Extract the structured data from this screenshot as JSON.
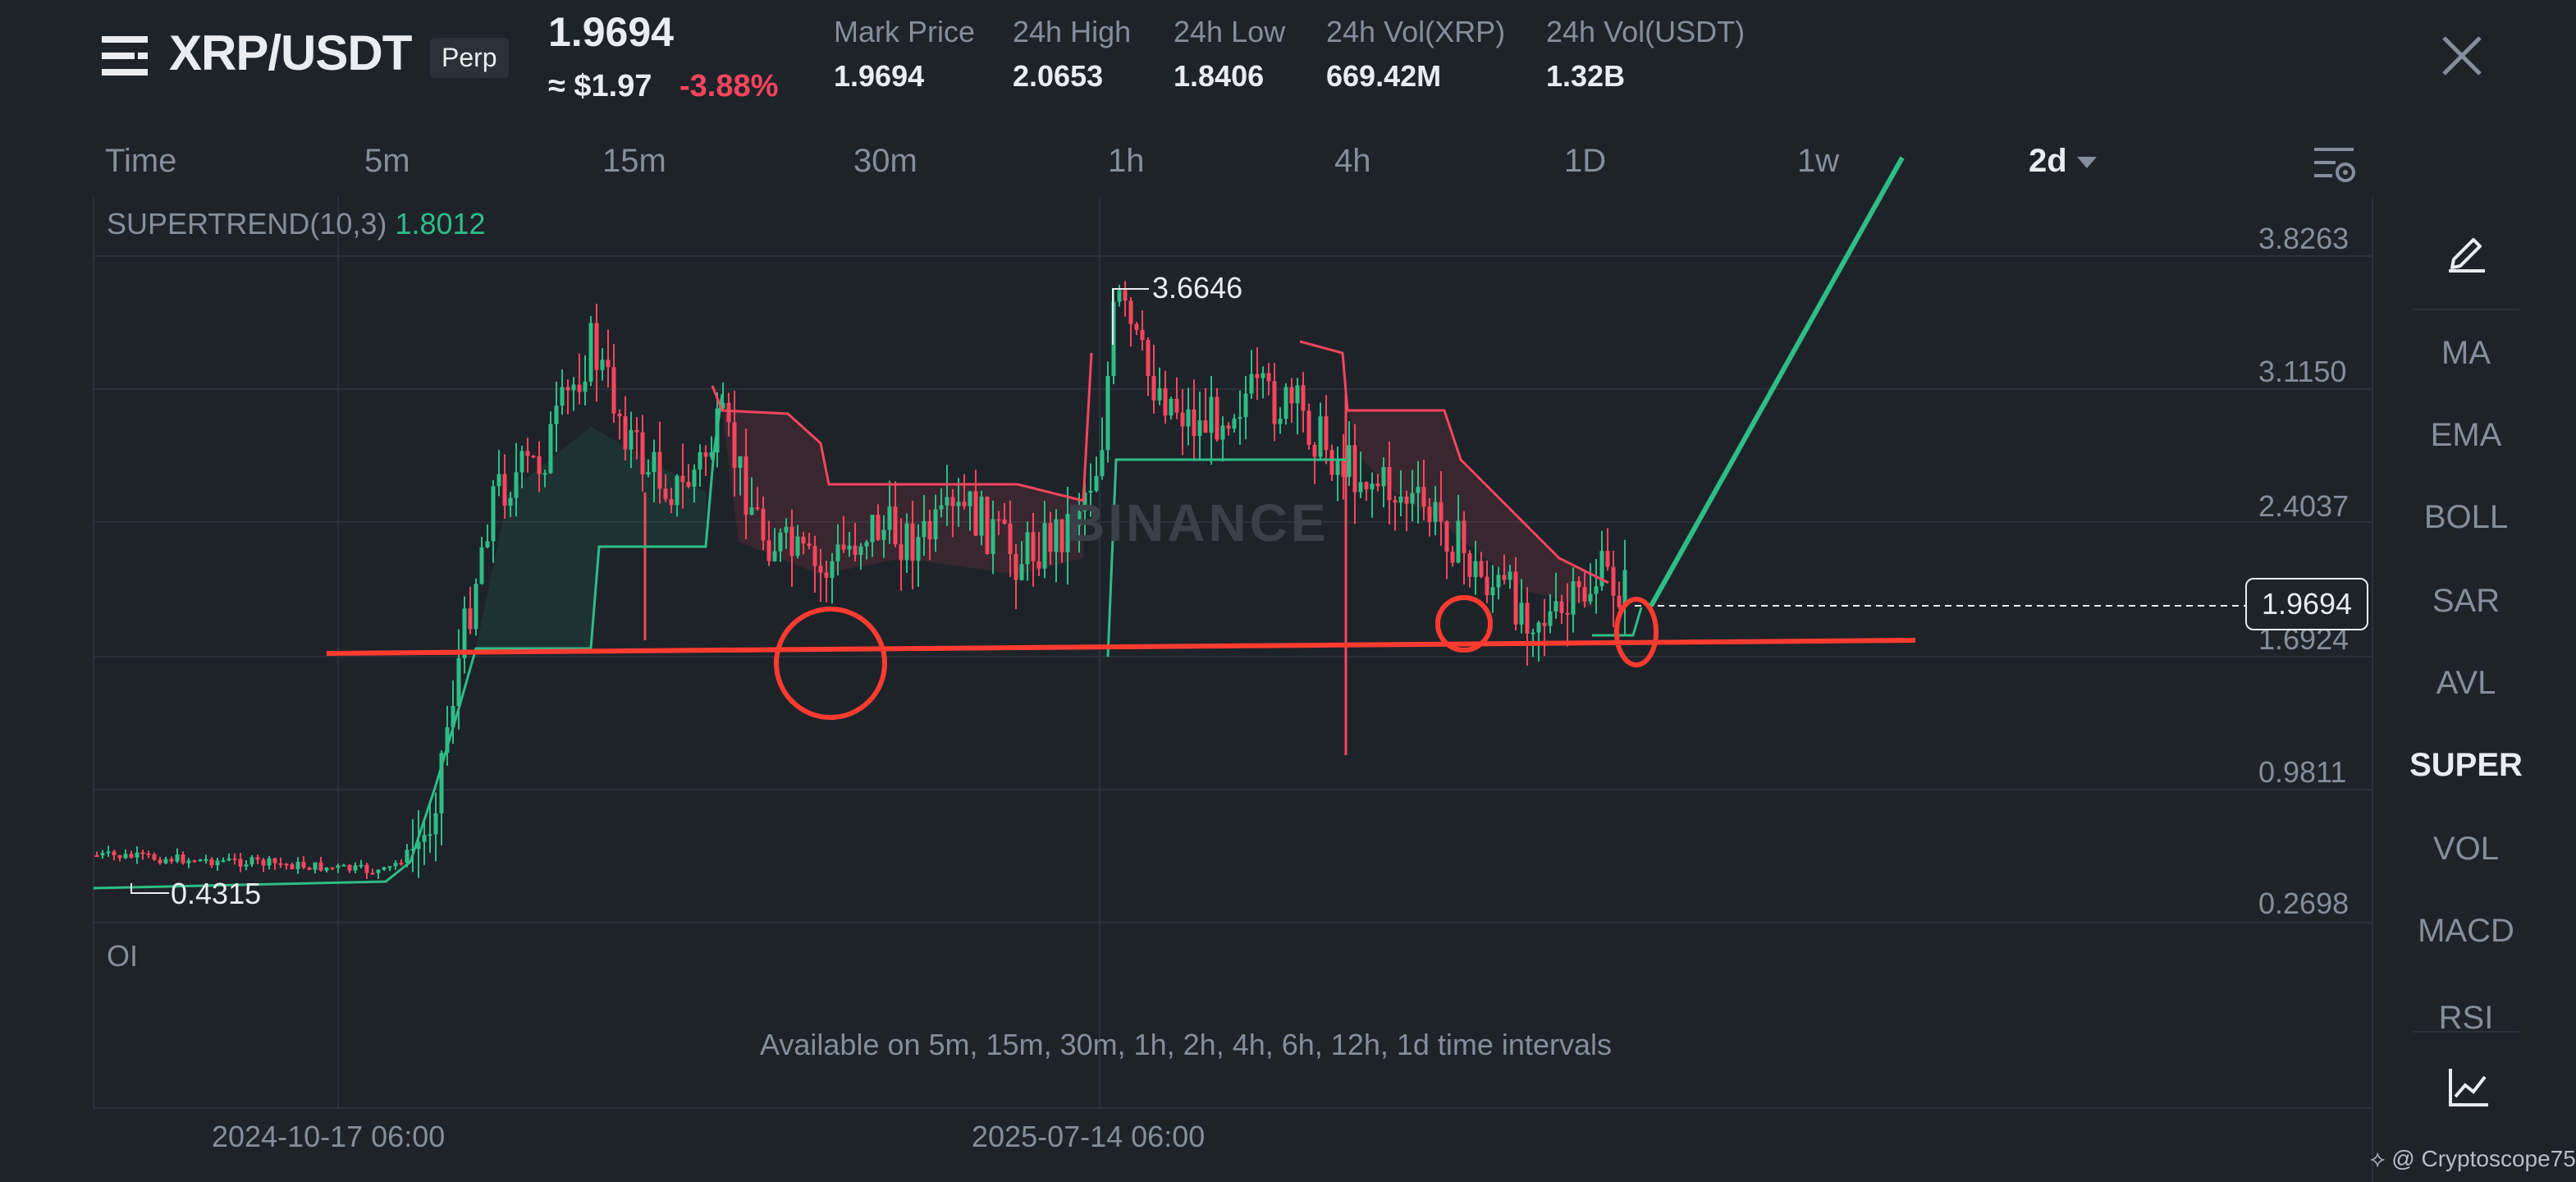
{
  "header": {
    "pair": "XRP/USDT",
    "badge": "Perp",
    "last_price": "1.9694",
    "usd_price": "≈ $1.97",
    "change": "-3.88%",
    "stats": [
      {
        "label": "Mark Price",
        "value": "1.9694"
      },
      {
        "label": "24h High",
        "value": "2.0653"
      },
      {
        "label": "24h Low",
        "value": "1.8406"
      },
      {
        "label": "24h Vol(XRP)",
        "value": "669.42M"
      },
      {
        "label": "24h Vol(USDT)",
        "value": "1.32B"
      }
    ]
  },
  "intervals": {
    "items": [
      "Time",
      "5m",
      "15m",
      "30m",
      "1h",
      "4h",
      "1D",
      "1w"
    ],
    "selected": "2d"
  },
  "chart": {
    "indicator_name": "SUPERTREND(10,3)",
    "indicator_value": "1.8012",
    "price_axis": [
      "3.8263",
      "3.1150",
      "2.4037",
      "1.6924",
      "0.9811",
      "0.2698"
    ],
    "current_price_tag": "1.9694",
    "peak_label": "3.6646",
    "low_label": "0.4315",
    "oi_label": "OI",
    "oi_note": "Available on 5m, 15m, 30m, 1h, 2h, 4h, 6h, 12h, 1d time intervals",
    "dates": [
      "2024-10-17 06:00",
      "2025-07-14 06:00"
    ],
    "watermark": "BINANCE",
    "colors": {
      "up": "#2ebd85",
      "down": "#f6465d",
      "annotation": "#ff3b30",
      "projection": "#2ebd85"
    }
  },
  "toolbar": {
    "items": [
      "MA",
      "EMA",
      "BOLL",
      "SAR",
      "AVL",
      "SUPER",
      "VOL",
      "MACD"
    ],
    "active": "SUPER",
    "partial_item": "RSI"
  },
  "credit": "@ Cryptoscope75"
}
